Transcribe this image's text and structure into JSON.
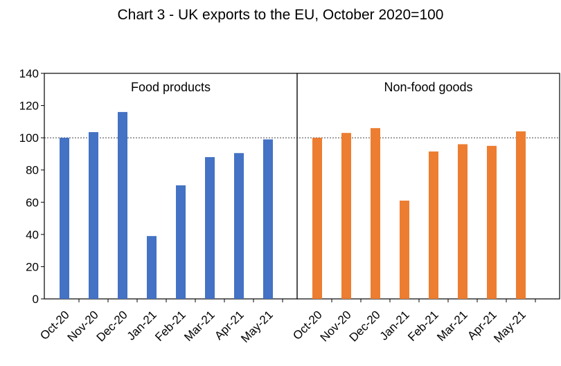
{
  "chart_data": {
    "type": "bar",
    "title": "Chart 3 - UK exports to the EU, October 2020=100",
    "ylim": [
      0,
      140
    ],
    "yticks": [
      0,
      20,
      40,
      60,
      80,
      100,
      120,
      140
    ],
    "reference_line": 100,
    "grid": false,
    "categories": [
      "Oct-20",
      "Nov-20",
      "Dec-20",
      "Jan-21",
      "Feb-21",
      "Mar-21",
      "Apr-21",
      "May-21"
    ],
    "series": [
      {
        "name": "Food products",
        "color": "#4472C4",
        "values": [
          100,
          103.5,
          116,
          39,
          70.5,
          88,
          90.5,
          99
        ]
      },
      {
        "name": "Non-food goods",
        "color": "#ED7D31",
        "values": [
          100,
          103,
          106,
          61,
          91.5,
          96,
          95,
          104
        ]
      }
    ]
  }
}
